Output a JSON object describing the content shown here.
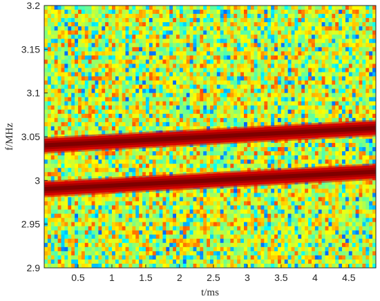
{
  "chart_data": {
    "type": "heatmap",
    "title": "",
    "xlabel": "t/ms",
    "ylabel": "f/MHz",
    "xlim": [
      0,
      4.9
    ],
    "ylim": [
      2.9,
      3.2
    ],
    "xticks": [
      0.5,
      1,
      1.5,
      2,
      2.5,
      3,
      3.5,
      4,
      4.5
    ],
    "xtick_labels": [
      "0.5",
      "1",
      "1.5",
      "2",
      "2.5",
      "3",
      "3.5",
      "4",
      "4.5"
    ],
    "yticks": [
      2.9,
      2.95,
      3.0,
      3.05,
      3.1,
      3.15,
      3.2
    ],
    "ytick_labels": [
      "2.9",
      "2.95",
      "3",
      "3.05",
      "3.1",
      "3.15",
      "3.2"
    ],
    "colormap": "jet",
    "background": "noise (green-yellow-orange with scattered cyan/blue and light red cells)",
    "grid": false,
    "series": [
      {
        "t": [
          0,
          4.9
        ],
        "f": [
          3.04,
          3.06
        ]
      },
      {
        "t": [
          0,
          4.9
        ],
        "f": [
          2.99,
          3.01
        ]
      }
    ],
    "colors": {
      "line_core": "#7f0000",
      "line_edge": "#d40000",
      "axis": "#262626"
    }
  }
}
